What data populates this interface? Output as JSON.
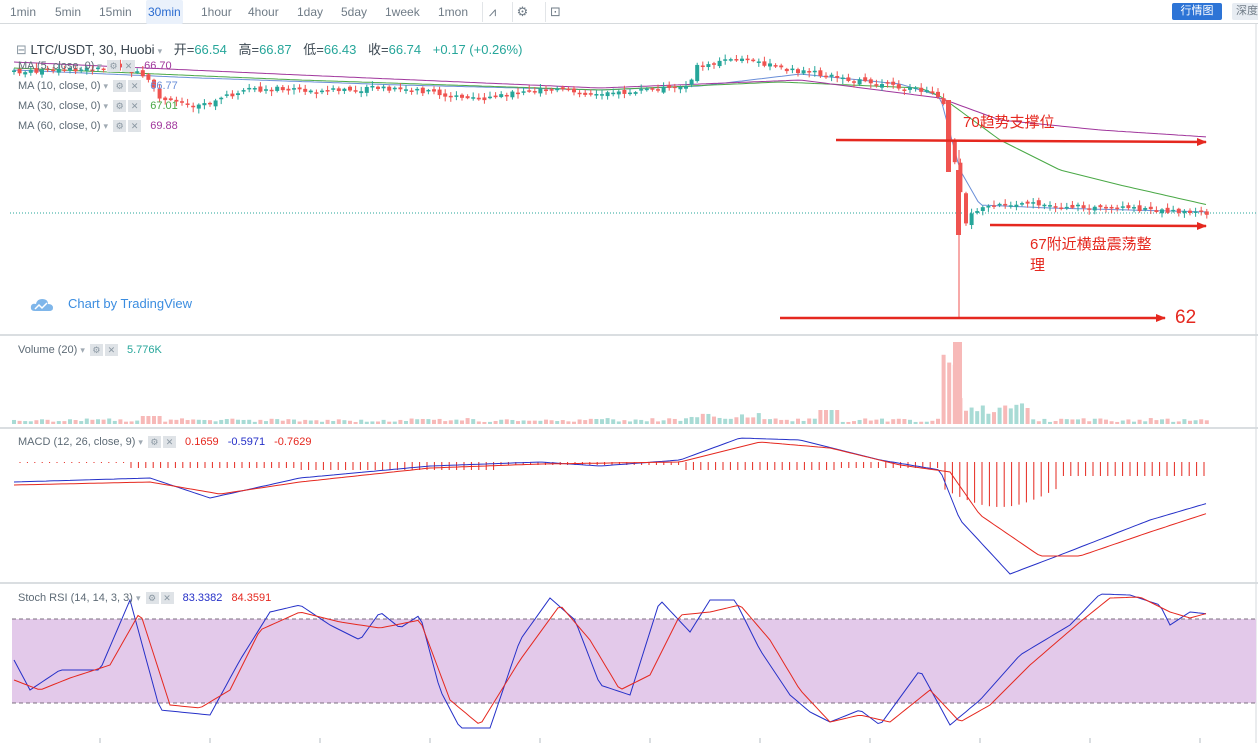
{
  "toolbar": {
    "timeframes": [
      "1min",
      "5min",
      "15min",
      "30min",
      "1hour",
      "4hour",
      "1day",
      "5day",
      "1week",
      "1mon"
    ],
    "active": "30min",
    "market_btn": "行情图",
    "depth_btn": "深度"
  },
  "main": {
    "symbol": "LTC/USDT, 30, Huobi",
    "open_label": "开=",
    "open": "66.54",
    "high_label": "高=",
    "high": "66.87",
    "low_label": "低=",
    "low": "66.43",
    "close_label": "收=",
    "close": "66.74",
    "change": "+0.17 (+0.26%)",
    "ma": [
      {
        "label": "MA (5, close, 0)",
        "value": "66.70",
        "color": "#e05050"
      },
      {
        "label": "MA (10, close, 0)",
        "value": "66.77",
        "color": "#6a8fd8"
      },
      {
        "label": "MA (30, close, 0)",
        "value": "67.01",
        "color": "#49a845"
      },
      {
        "label": "MA (60, close, 0)",
        "value": "69.88",
        "color": "#a0369c"
      }
    ]
  },
  "annotations": {
    "support": "70趋势支撑位",
    "range_line1": "67附近横盘震荡整",
    "range_line2": "理",
    "target": "62"
  },
  "branding": "Chart by TradingView",
  "volume": {
    "label": "Volume (20)",
    "value": "5.776K"
  },
  "macd": {
    "label": "MACD (12, 26, close, 9)",
    "hist": "0.1659",
    "macd": "-0.5971",
    "signal": "-0.7629"
  },
  "stochrsi": {
    "label": "Stoch RSI (14, 14, 3, 3)",
    "k": "83.3382",
    "d": "84.3591"
  },
  "colors": {
    "up": "#26a69a",
    "down": "#ef5350",
    "accent": "#2d74d6",
    "annotation": "#e5281f",
    "band": "#e3c9ea"
  },
  "chart_data": {
    "type": "candlestick",
    "symbol": "LTC/USDT",
    "interval": "30",
    "exchange": "Huobi",
    "price_anchors": [
      {
        "close": 70.0,
        "label": "70趋势支撑位"
      },
      {
        "close": 67.0,
        "label": "67附近横盘震荡整理"
      },
      {
        "close": 62.0,
        "label": "62"
      }
    ],
    "last_price": {
      "open": 66.54,
      "high": 66.87,
      "low": 66.43,
      "close": 66.74,
      "change": 0.17,
      "change_pct": 0.26
    },
    "indicators": {
      "MA5": 66.7,
      "MA10": 66.77,
      "MA30": 67.01,
      "MA60": 69.88,
      "Volume20": "5.776K",
      "MACD": {
        "hist": 0.1659,
        "macd": -0.5971,
        "signal": -0.7629
      },
      "StochRSI": {
        "k": 83.3382,
        "d": 84.3591,
        "upper_band": 80,
        "lower_band": 20
      }
    }
  }
}
